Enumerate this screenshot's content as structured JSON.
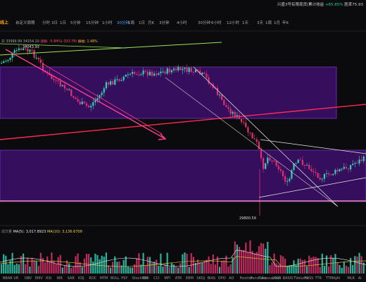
{
  "account": {
    "label": "兴盛3号有限现货(累计收益",
    "gain": "+65.85%",
    "extra": "胜率75.93"
  },
  "toolbar": {
    "logo": "线上",
    "items": [
      "自定义周期",
      "分时",
      "3日",
      "1日",
      "5分钟",
      "15分钟",
      "1小时",
      "30分钟",
      "1周",
      "1日",
      "月K",
      "3分钟",
      "4小时",
      "30分钟",
      "6小时",
      "12小时",
      "1天",
      "3天",
      "1周",
      "1月",
      "年K"
    ],
    "active_index": 7
  },
  "ohlc": {
    "prefix": "开",
    "o": "33999.99",
    "h": "34154.10",
    "chg_label": "涨跌:",
    "chg": "-5.84%(-333.78)",
    "amp_label": "振幅:",
    "amp": "1.48%"
  },
  "price_labels": {
    "high": "34043.93",
    "low": "29800.59"
  },
  "volume": {
    "label": "成交量",
    "ma5_label": "MA(5):",
    "ma5": "3,017.8923",
    "ma10_label": "MA(10):",
    "ma10": "3,136.6709"
  },
  "indicators": [
    "BBAR",
    "VR",
    "OBV",
    "EMV",
    "RSI",
    "WR",
    "SAR",
    "KDJ",
    "ROC",
    "MTM",
    "BOLL",
    "PSY",
    "StochRSI",
    "SMI",
    "CCI",
    "MFI",
    "ATR",
    "EBM",
    "SKDJ",
    "BIAS",
    "DPO",
    "AO",
    "Position",
    "FundRate",
    "AccountVol",
    "LSUR",
    "BASIS",
    "TVolume",
    "FDSS",
    "TTR",
    "TTMAJ",
    "AI",
    "MLR",
    "AI"
  ],
  "colors": {
    "bg": "#0b0b0d",
    "zone": "#3a0f66",
    "up": "#e0306e",
    "down": "#2fd1b5",
    "accent": "#4aa3ff"
  }
}
